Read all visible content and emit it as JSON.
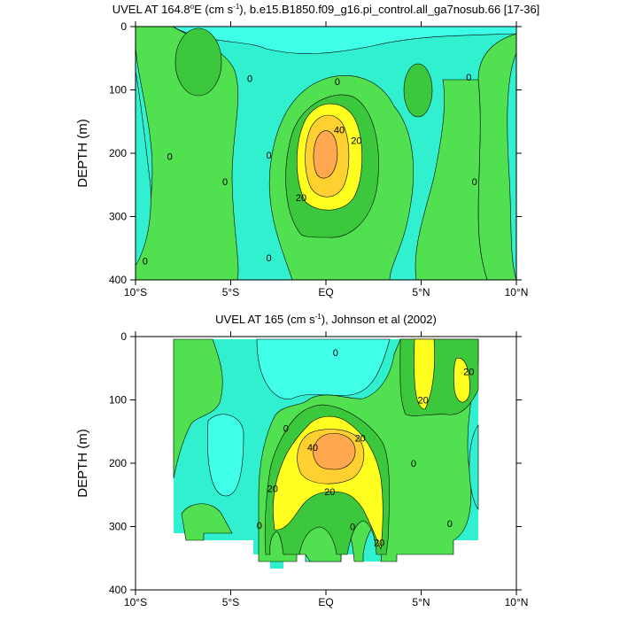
{
  "colors": {
    "cyan_neg": "#00f0f0",
    "light_cyan": "#40ffe8",
    "aqua": "#30f0d0",
    "green_0_10": "#50e050",
    "green_10_20": "#3cc83c",
    "yellow_20_30": "#ffff20",
    "gold_30_40": "#ffd030",
    "orange_40": "#ffa850",
    "line": "#000000"
  },
  "chart_data": [
    {
      "type": "contour",
      "title_prefix": "UVEL AT 164.8",
      "title_superscript_o": "o",
      "title_mid": "E (cm s",
      "title_superscript_exp": "-1",
      "title_suffix": "), b.e15.B1850.f09_g16.pi_control.all_ga7nosub.66 [17-36]",
      "ylabel": "DEPTH (m)",
      "xlim": [
        -10,
        10
      ],
      "ylim": [
        400,
        0
      ],
      "x_ticks": [
        -10,
        -5,
        0,
        5,
        10
      ],
      "x_tick_labels": [
        "10°S",
        "5°S",
        "EQ",
        "5°N",
        "10°N"
      ],
      "y_ticks": [
        0,
        100,
        200,
        300,
        400
      ],
      "contour_levels": [
        0,
        10,
        20,
        30,
        40
      ],
      "contour_labels": [
        {
          "text": "0",
          "x": 7.5,
          "y": 80
        },
        {
          "text": "0",
          "x": 0.6,
          "y": 87
        },
        {
          "text": "0",
          "x": -4,
          "y": 82
        },
        {
          "text": "0",
          "x": -8.2,
          "y": 205
        },
        {
          "text": "0",
          "x": -5.3,
          "y": 245
        },
        {
          "text": "0",
          "x": -3.0,
          "y": 203
        },
        {
          "text": "0",
          "x": -3.0,
          "y": 365
        },
        {
          "text": "0",
          "x": -9.5,
          "y": 370
        },
        {
          "text": "0",
          "x": 7.8,
          "y": 245
        },
        {
          "text": "40",
          "x": 0.7,
          "y": 163
        },
        {
          "text": "20",
          "x": 1.6,
          "y": 180
        },
        {
          "text": "20",
          "x": -1.3,
          "y": 270
        }
      ]
    },
    {
      "type": "contour",
      "title_prefix": "UVEL AT 165 (cm s",
      "title_superscript_exp": "-1",
      "title_suffix": "), Johnson et al (2002)",
      "ylabel": "DEPTH (m)",
      "xlim": [
        -10,
        10
      ],
      "ylim": [
        400,
        0
      ],
      "x_ticks": [
        -10,
        -5,
        0,
        5,
        10
      ],
      "x_tick_labels": [
        "10°S",
        "5°S",
        "EQ",
        "5°N",
        "10°N"
      ],
      "y_ticks": [
        0,
        100,
        200,
        300,
        400
      ],
      "contour_levels": [
        0,
        10,
        20,
        30,
        40
      ],
      "contour_labels": [
        {
          "text": "0",
          "x": 0.5,
          "y": 25
        },
        {
          "text": "0",
          "x": -2.1,
          "y": 145
        },
        {
          "text": "0",
          "x": -3.5,
          "y": 298
        },
        {
          "text": "0",
          "x": 1.4,
          "y": 300
        },
        {
          "text": "0",
          "x": 4.6,
          "y": 200
        },
        {
          "text": "0",
          "x": 6.5,
          "y": 295
        },
        {
          "text": "20",
          "x": 7.5,
          "y": 55
        },
        {
          "text": "20",
          "x": 5.1,
          "y": 100
        },
        {
          "text": "20",
          "x": 1.8,
          "y": 160
        },
        {
          "text": "20",
          "x": 0.2,
          "y": 245
        },
        {
          "text": "20",
          "x": -2.8,
          "y": 240
        },
        {
          "text": "20",
          "x": 2.8,
          "y": 325
        },
        {
          "text": "40",
          "x": -0.7,
          "y": 175
        }
      ]
    }
  ]
}
